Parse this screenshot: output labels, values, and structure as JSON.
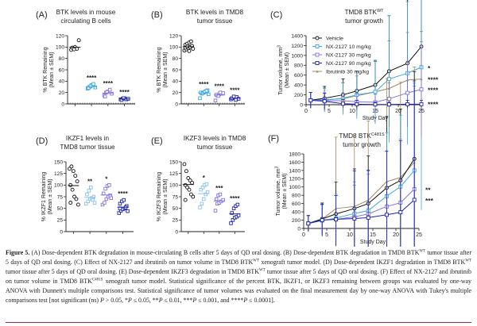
{
  "colors": {
    "vehicle": "#111111",
    "nx10": "#3aa6df",
    "nx10_pale": "#86c3ea",
    "nx30": "#8474df",
    "nx90": "#1d22b0",
    "ibrutinib": "#a08a58"
  },
  "chart_data": [
    {
      "id": "A",
      "type": "scatter",
      "panel_label": "(A)",
      "title": [
        "BTK levels in mouse",
        "circulating B cells"
      ],
      "ylabel": [
        "% BTK Remaining",
        "(Mean ± SEM)"
      ],
      "ylim": [
        0,
        120
      ],
      "yticks": [
        0,
        20,
        40,
        60,
        80,
        100,
        120
      ],
      "refline": 0,
      "groups": [
        {
          "color_key": "vehicle",
          "marker": "circle",
          "values": [
            95,
            98,
            100,
            97,
            112,
            99,
            96
          ],
          "sig": ""
        },
        {
          "color_key": "nx10",
          "marker": "square",
          "values": [
            27,
            30,
            33,
            35,
            29,
            28,
            31
          ],
          "sig": "****"
        },
        {
          "color_key": "nx30",
          "marker": "square",
          "values": [
            15,
            20,
            22,
            25,
            18,
            13,
            21
          ],
          "sig": "****"
        },
        {
          "color_key": "nx90",
          "marker": "square",
          "values": [
            8,
            9,
            10,
            8,
            9,
            7,
            10
          ],
          "sig": "****"
        }
      ]
    },
    {
      "id": "B",
      "type": "scatter",
      "panel_label": "(B)",
      "title": [
        "BTK levels in TMD8",
        "tumor tissue"
      ],
      "ylabel": [
        "% BTK Remaining",
        "(Mean ± SEM)"
      ],
      "ylim": [
        0,
        120
      ],
      "yticks": [
        0,
        20,
        40,
        60,
        80,
        100,
        120
      ],
      "refline": 0,
      "groups": [
        {
          "color_key": "vehicle",
          "marker": "circle",
          "values": [
            94,
            96,
            98,
            100,
            102,
            104,
            106,
            108,
            110,
            97,
            99,
            101,
            93
          ],
          "sig": ""
        },
        {
          "color_key": "nx10",
          "marker": "square",
          "values": [
            10,
            18,
            20,
            22,
            24,
            20,
            19,
            21,
            23,
            17
          ],
          "sig": "****"
        },
        {
          "color_key": "nx30",
          "marker": "square",
          "values": [
            6,
            15,
            17,
            18,
            19,
            16,
            14,
            20
          ],
          "sig": "****"
        },
        {
          "color_key": "nx90",
          "marker": "square",
          "values": [
            8,
            10,
            11,
            12,
            9,
            10,
            13,
            7
          ],
          "sig": "****"
        }
      ]
    },
    {
      "id": "D",
      "type": "scatter",
      "panel_label": "(D)",
      "title": [
        "IKZF1 levels in",
        "TMD8 tumor tissue"
      ],
      "ylabel": [
        "% IKZF1 Remaining",
        "(Mean ± SEM)"
      ],
      "ylim": [
        0,
        150
      ],
      "yticks": [
        0,
        25,
        50,
        75,
        100,
        125,
        150
      ],
      "groups": [
        {
          "color_key": "vehicle",
          "marker": "circle",
          "values": [
            135,
            140,
            130,
            120,
            108,
            100,
            90,
            75,
            70,
            58,
            62
          ],
          "sig": ""
        },
        {
          "color_key": "nx10_pale",
          "marker": "square",
          "values": [
            60,
            65,
            70,
            72,
            75,
            80,
            88,
            95,
            68,
            62
          ],
          "sig": "**"
        },
        {
          "color_key": "nx30",
          "marker": "square",
          "values": [
            58,
            62,
            70,
            75,
            78,
            82,
            92,
            98,
            100,
            72
          ],
          "sig": "*"
        },
        {
          "color_key": "nx90",
          "marker": "square",
          "values": [
            40,
            45,
            48,
            50,
            55,
            60,
            65,
            68,
            52,
            44,
            50
          ],
          "sig": "****"
        }
      ]
    },
    {
      "id": "E",
      "type": "scatter",
      "panel_label": "(E)",
      "title": [
        "IKZF3 levels in TMD8",
        "tumor tissue"
      ],
      "ylabel": [
        "% IKZF3 Remaining",
        "(Mean ± SEM)"
      ],
      "ylim": [
        0,
        150
      ],
      "yticks": [
        0,
        25,
        50,
        75,
        100,
        125,
        150
      ],
      "groups": [
        {
          "color_key": "vehicle",
          "marker": "circle",
          "values": [
            145,
            130,
            115,
            110,
            105,
            100,
            95,
            90,
            80,
            75,
            68
          ],
          "sig": ""
        },
        {
          "color_key": "nx10_pale",
          "marker": "square",
          "values": [
            52,
            60,
            70,
            80,
            85,
            90,
            95,
            100,
            102
          ],
          "sig": "*"
        },
        {
          "color_key": "nx30",
          "marker": "square",
          "values": [
            45,
            60,
            62,
            65,
            68,
            70,
            78,
            80
          ],
          "sig": "***"
        },
        {
          "color_key": "nx90",
          "marker": "square",
          "values": [
            18,
            25,
            30,
            32,
            35,
            40,
            50,
            55,
            58
          ],
          "sig": "****"
        }
      ]
    },
    {
      "id": "C",
      "type": "line",
      "panel_label": "(C)",
      "title": [
        "TMD8 BTK",
        "tumor growth"
      ],
      "title_sup": "WT",
      "xlabel": "Study Day",
      "ylabel": [
        "Tumor volume, mm",
        "(Mean ± SEM)"
      ],
      "ylabel_sup": "3",
      "xlim": [
        0,
        25
      ],
      "xticks": [
        0,
        5,
        10,
        15,
        20,
        25
      ],
      "ylim": [
        0,
        1400
      ],
      "yticks": [
        0,
        200,
        400,
        600,
        800,
        1000,
        1200,
        1400
      ],
      "legend": "top-left",
      "x": [
        1,
        4,
        8,
        11,
        15,
        18,
        22,
        25
      ],
      "series": [
        {
          "name": "Vehicle",
          "color_key": "vehicle",
          "marker": "circle",
          "values": [
            90,
            130,
            200,
            280,
            400,
            680,
            840,
            1180
          ],
          "err": [
            10,
            15,
            20,
            25,
            30,
            70,
            80,
            90
          ],
          "sig": ""
        },
        {
          "name": "NX-2127 10 mg/kg",
          "color_key": "nx10",
          "marker": "square",
          "values": [
            90,
            90,
            130,
            200,
            260,
            520,
            640,
            760
          ],
          "err": [
            10,
            15,
            20,
            30,
            40,
            80,
            90,
            180
          ],
          "sig": "*"
        },
        {
          "name": "NX-2127 30 mg/kg",
          "color_key": "nx30",
          "marker": "square",
          "values": [
            90,
            80,
            80,
            60,
            50,
            120,
            240,
            310
          ],
          "err": [
            10,
            10,
            10,
            10,
            10,
            20,
            40,
            60
          ],
          "sig": "****"
        },
        {
          "name": "NX-2127 90 mg/kg",
          "color_key": "nx90",
          "marker": "square",
          "values": [
            90,
            70,
            20,
            10,
            5,
            5,
            10,
            10
          ],
          "err": [
            10,
            10,
            5,
            5,
            3,
            3,
            5,
            5
          ],
          "sig": "****"
        },
        {
          "name": "Ibrutinib 30 mg/kg",
          "color_key": "ibrutinib",
          "marker": "triangle",
          "values": [
            90,
            100,
            120,
            180,
            260,
            330,
            500,
            520
          ],
          "err": [
            10,
            15,
            20,
            25,
            40,
            60,
            60,
            60
          ],
          "sig": "****"
        }
      ]
    },
    {
      "id": "F",
      "type": "line",
      "panel_label": "(F)",
      "title": [
        "TMD8 BTK",
        "tumor growth"
      ],
      "title_sup": "C481S",
      "xlabel": "Study Day",
      "ylabel": [
        "Tumor volume, mm",
        "(Mean ± SEM)"
      ],
      "ylabel_sup": "3",
      "xlim": [
        0,
        25
      ],
      "xticks": [
        0,
        5,
        10,
        15,
        20,
        25
      ],
      "ylim": [
        0,
        1800
      ],
      "yticks": [
        0,
        200,
        400,
        600,
        800,
        1000,
        1200,
        1400,
        1600,
        1800
      ],
      "x": [
        1,
        4,
        7,
        11,
        14,
        18,
        21,
        24
      ],
      "series": [
        {
          "name": "Vehicle",
          "color_key": "vehicle",
          "marker": "circle",
          "values": [
            120,
            230,
            350,
            480,
            600,
            980,
            1160,
            1680
          ],
          "err": [
            10,
            20,
            40,
            50,
            60,
            90,
            90,
            110
          ],
          "sig": ""
        },
        {
          "name": "NX-2127 10 mg/kg",
          "color_key": "nx10",
          "marker": "square",
          "values": [
            120,
            190,
            250,
            360,
            430,
            780,
            1010,
            1400
          ],
          "err": [
            10,
            20,
            30,
            40,
            50,
            80,
            90,
            110
          ],
          "sig": ""
        },
        {
          "name": "NX-2127 30 mg/kg",
          "color_key": "nx30",
          "marker": "square",
          "values": [
            120,
            200,
            220,
            280,
            350,
            530,
            620,
            950
          ],
          "err": [
            10,
            20,
            30,
            40,
            50,
            70,
            80,
            130
          ],
          "sig": "**"
        },
        {
          "name": "NX-2127 90 mg/kg",
          "color_key": "nx90",
          "marker": "square",
          "values": [
            120,
            200,
            220,
            240,
            260,
            330,
            390,
            690
          ],
          "err": [
            10,
            20,
            30,
            60,
            60,
            80,
            90,
            150
          ],
          "sig": "***"
        },
        {
          "name": "Ibrutinib 30 mg/kg",
          "color_key": "ibrutinib",
          "marker": "triangle",
          "values": [
            120,
            230,
            480,
            530,
            680,
            1130,
            1230,
            1600
          ],
          "err": [
            10,
            20,
            90,
            90,
            100,
            130,
            120,
            120
          ],
          "sig": ""
        }
      ]
    }
  ],
  "caption": [
    {
      "t": "Figure 5.",
      "b": true
    },
    {
      "t": " (A) Dose-dependent BTK degradation in mouse-circulating B cells after 5 days of QD oral dosing. (B) Dose-dependent BTK degradation in TMD8 BTK"
    },
    {
      "t": "WT",
      "sup": true
    },
    {
      "t": " tumor tissue after 5 days of QD oral dosing. (C) Effect of NX-2127 and ibrutinib on tumor volume in TMD8 BTK"
    },
    {
      "t": "WT",
      "sup": true
    },
    {
      "t": " xenograft tumor model. (D) Dose-dependent IKZF1 degradation in TMD8 BTK"
    },
    {
      "t": "WT",
      "sup": true
    },
    {
      "t": " tumor tissue after 5 days of QD oral dosing. (E) Dose-dependent IKZF3 degradation in TMD8 BTK"
    },
    {
      "t": "WT",
      "sup": true
    },
    {
      "t": " tumor tissue after 5 days of QD oral dosing. (F) Effect of NX-2127 and ibrutinib on tumor volume in TMD8 BTK"
    },
    {
      "t": "C481S",
      "sup": true
    },
    {
      "t": " xenograft tumor model. Statistical significance of the percent BTK, IKZF1, or IKZF3 remaining between groups was evaluated by one-way ANOVA with Dunnett's multiple comparisons test. Statistical significance of tumor volumes was evaluated on the final measurement day by one-way ANOVA with Tukey's multiple comparisons test [not significant (ns) "
    },
    {
      "t": "P",
      "i": true
    },
    {
      "t": " > 0.05, *"
    },
    {
      "t": "P",
      "i": true
    },
    {
      "t": " ≤ 0.05, **"
    },
    {
      "t": "P",
      "i": true
    },
    {
      "t": " ≤ 0.01, ***"
    },
    {
      "t": "P",
      "i": true
    },
    {
      "t": " ≤ 0.001, and ****"
    },
    {
      "t": "P",
      "i": true
    },
    {
      "t": " ≤ 0.0001]."
    }
  ]
}
